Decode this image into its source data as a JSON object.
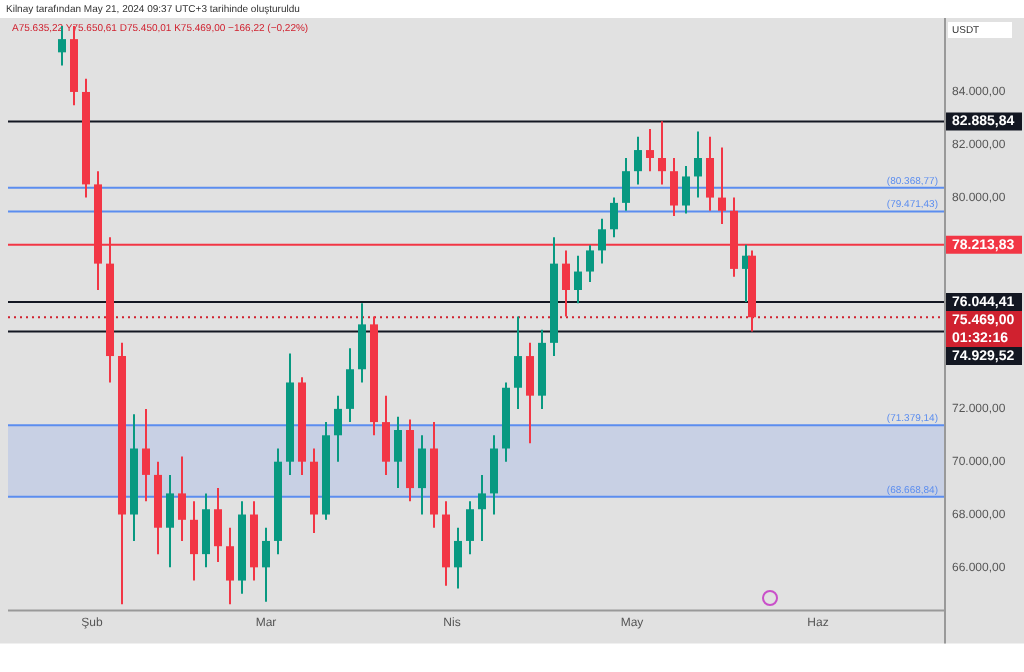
{
  "chart_data": {
    "type": "candlestick",
    "annotations": [
      "Kilnay tarafından May 21, 2024 09:37 UTC+3 tarihinde oluşturuldu",
      "A75.635,22 Y75.650,61 D75.450,01 K75.469,00 −166,22 (−0,22%)",
      {
        "text": "(80.368,77)",
        "y": 80368.77
      },
      {
        "text": "(79.471,43)",
        "y": 79471.43
      },
      {
        "text": "(71.379,14)",
        "y": 71379.14
      },
      {
        "text": "(68.668,84)",
        "y": 68668.84
      }
    ],
    "ylabel": "USDT",
    "colors": [
      "#089981",
      "#f23645",
      "#f23645",
      "#f23645",
      "#f23645",
      "#f23645",
      "#089981",
      "#f23645",
      "#f23645",
      "#089981",
      "#f23645",
      "#f23645",
      "#089981",
      "#f23645",
      "#f23645",
      "#089981",
      "#f23645",
      "#089981",
      "#089981",
      "#089981",
      "#f23645",
      "#f23645",
      "#089981",
      "#089981",
      "#089981",
      "#089981",
      "#f23645",
      "#f23645",
      "#089981",
      "#f23645",
      "#089981",
      "#f23645",
      "#f23645",
      "#089981",
      "#089981",
      "#089981",
      "#089981",
      "#089981",
      "#089981",
      "#f23645",
      "#089981",
      "#089981",
      "#f23645",
      "#089981",
      "#089981",
      "#089981",
      "#089981",
      "#089981",
      "#089981",
      "#f23645",
      "#f23645",
      "#f23645",
      "#089981",
      "#089981",
      "#f23645",
      "#f23645",
      "#f23645",
      "#089981",
      "#f23645"
    ],
    "x": [
      "2024-01-27",
      "2024-01-29",
      "2024-01-31",
      "2024-02-02",
      "2024-02-04",
      "2024-02-06",
      "2024-02-08",
      "2024-02-10",
      "2024-02-12",
      "2024-02-14",
      "2024-02-16",
      "2024-02-18",
      "2024-02-20",
      "2024-02-22",
      "2024-02-24",
      "2024-02-26",
      "2024-02-28",
      "2024-03-01",
      "2024-03-03",
      "2024-03-05",
      "2024-03-07",
      "2024-03-09",
      "2024-03-11",
      "2024-03-13",
      "2024-03-15",
      "2024-03-17",
      "2024-03-19",
      "2024-03-21",
      "2024-03-23",
      "2024-03-25",
      "2024-03-27",
      "2024-03-29",
      "2024-03-31",
      "2024-04-02",
      "2024-04-04",
      "2024-04-06",
      "2024-04-08",
      "2024-04-10",
      "2024-04-12",
      "2024-04-14",
      "2024-04-16",
      "2024-04-18",
      "2024-04-20",
      "2024-04-22",
      "2024-04-24",
      "2024-04-26",
      "2024-04-28",
      "2024-04-30",
      "2024-05-02",
      "2024-05-04",
      "2024-05-06",
      "2024-05-08",
      "2024-05-10",
      "2024-05-12",
      "2024-05-14",
      "2024-05-16",
      "2024-05-18",
      "2024-05-20",
      "2024-05-21"
    ],
    "ohlc": [
      [
        85500,
        86500,
        85000,
        86000
      ],
      [
        86000,
        86500,
        83500,
        84000
      ],
      [
        84000,
        84500,
        80000,
        80500
      ],
      [
        80500,
        81000,
        76500,
        77500
      ],
      [
        77500,
        78500,
        73000,
        74000
      ],
      [
        74000,
        74500,
        64600,
        68000
      ],
      [
        68000,
        71800,
        67000,
        70500
      ],
      [
        70500,
        72000,
        68500,
        69500
      ],
      [
        69500,
        70000,
        66500,
        67500
      ],
      [
        67500,
        69500,
        66000,
        68800
      ],
      [
        68800,
        70200,
        67000,
        67800
      ],
      [
        67800,
        68500,
        65500,
        66500
      ],
      [
        66500,
        68800,
        66000,
        68200
      ],
      [
        68200,
        69000,
        66200,
        66800
      ],
      [
        66800,
        67500,
        64600,
        65500
      ],
      [
        65500,
        68500,
        65000,
        68000
      ],
      [
        68000,
        68500,
        65500,
        66000
      ],
      [
        66000,
        67500,
        64700,
        67000
      ],
      [
        67000,
        70500,
        66500,
        70000
      ],
      [
        70000,
        74100,
        69500,
        73000
      ],
      [
        73000,
        73200,
        69500,
        70000
      ],
      [
        70000,
        70500,
        67300,
        68000
      ],
      [
        68000,
        71500,
        67800,
        71000
      ],
      [
        71000,
        72500,
        70000,
        72000
      ],
      [
        72000,
        74300,
        71500,
        73500
      ],
      [
        73500,
        76000,
        73000,
        75200
      ],
      [
        75200,
        75500,
        71000,
        71500
      ],
      [
        71500,
        72500,
        69500,
        70000
      ],
      [
        70000,
        71700,
        69000,
        71200
      ],
      [
        71200,
        71600,
        68500,
        69000
      ],
      [
        69000,
        71000,
        68000,
        70500
      ],
      [
        70500,
        71500,
        67500,
        68000
      ],
      [
        68000,
        68500,
        65300,
        66000
      ],
      [
        66000,
        67500,
        65200,
        67000
      ],
      [
        67000,
        68500,
        66500,
        68200
      ],
      [
        68200,
        69500,
        67000,
        68800
      ],
      [
        68800,
        71000,
        68000,
        70500
      ],
      [
        70500,
        73000,
        70000,
        72800
      ],
      [
        72800,
        75500,
        72000,
        74000
      ],
      [
        74000,
        74500,
        70700,
        72500
      ],
      [
        72500,
        75000,
        72000,
        74500
      ],
      [
        74500,
        78500,
        74000,
        77500
      ],
      [
        77500,
        78000,
        75500,
        76500
      ],
      [
        76500,
        77800,
        76000,
        77200
      ],
      [
        77200,
        78200,
        76800,
        78000
      ],
      [
        78000,
        79200,
        77500,
        78800
      ],
      [
        78800,
        80000,
        78500,
        79800
      ],
      [
        79800,
        81500,
        79500,
        81000
      ],
      [
        81000,
        82300,
        80500,
        81800
      ],
      [
        81800,
        82600,
        81000,
        81500
      ],
      [
        81500,
        82886,
        80500,
        81000
      ],
      [
        81000,
        81500,
        79300,
        79700
      ],
      [
        79700,
        81200,
        79400,
        80800
      ],
      [
        80800,
        82500,
        80000,
        81500
      ],
      [
        81500,
        82300,
        79500,
        80000
      ],
      [
        80000,
        81900,
        79000,
        79500
      ],
      [
        79500,
        80000,
        77000,
        77300
      ],
      [
        77300,
        78213,
        76044,
        77800
      ],
      [
        77800,
        78000,
        74930,
        75469
      ]
    ],
    "xlim": [
      "2024-01-18",
      "2024-06-22"
    ],
    "xticks": [
      {
        "value": "2024-02-01",
        "label": "Şub"
      },
      {
        "value": "2024-03-01",
        "label": "Mar"
      },
      {
        "value": "2024-04-01",
        "label": "Nis"
      },
      {
        "value": "2024-05-01",
        "label": "May"
      },
      {
        "value": "2024-06-01",
        "label": "Haz"
      }
    ],
    "ylim": [
      64400,
      86800
    ],
    "yticks": [
      {
        "value": 66000,
        "label": "66.000,00"
      },
      {
        "value": 68000,
        "label": "68.000,00"
      },
      {
        "value": 70000,
        "label": "70.000,00"
      },
      {
        "value": 72000,
        "label": "72.000,00"
      },
      {
        "value": 80000,
        "label": "80.000,00"
      },
      {
        "value": 82000,
        "label": "82.000,00"
      },
      {
        "value": 84000,
        "label": "84.000,00"
      }
    ],
    "ref_lines": [
      {
        "axis": "y",
        "value": 82885.84,
        "label": "82.885,84",
        "color": "#131722"
      },
      {
        "axis": "y",
        "value": 80368.77,
        "color": "#5b8def"
      },
      {
        "axis": "y",
        "value": 79471.43,
        "color": "#5b8def"
      },
      {
        "axis": "y",
        "value": 78213.83,
        "label": "78.213,83",
        "color": "#f23645"
      },
      {
        "axis": "y",
        "value": 76044.41,
        "label": "76.044,41",
        "color": "#131722"
      },
      {
        "axis": "y",
        "value": 75469,
        "label": "75.469,00\n01:32:16",
        "color": "#d0212f",
        "line_style": "dotted"
      },
      {
        "axis": "y",
        "value": 74929.52,
        "label": "74.929,52",
        "color": "#131722"
      },
      {
        "axis": "y",
        "value": 71379.14,
        "color": "#5b8def"
      },
      {
        "axis": "y",
        "value": 68668.84,
        "color": "#5b8def"
      }
    ],
    "bands": [
      {
        "axis": "y",
        "from": 68668.84,
        "to": 71379.14,
        "color": "#2962ff"
      }
    ],
    "grid": false,
    "legend": false
  }
}
